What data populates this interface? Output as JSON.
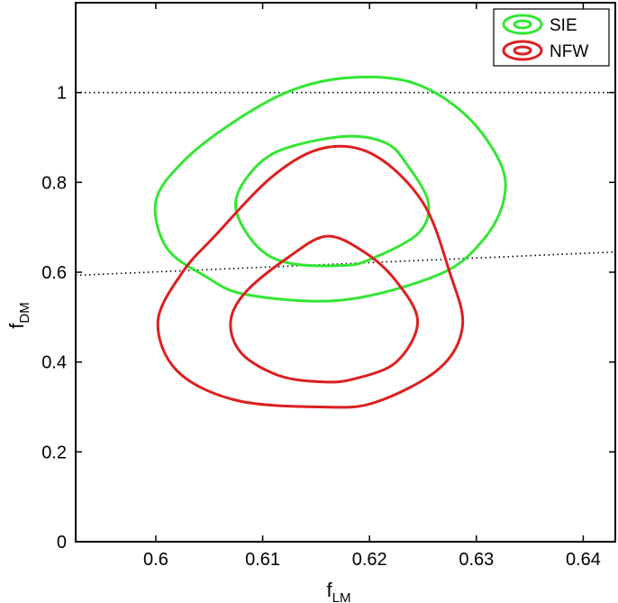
{
  "chart_data": {
    "type": "contour",
    "xlabel": {
      "main": "f",
      "sub": "LM"
    },
    "ylabel": {
      "main": "f",
      "sub": "DM"
    },
    "xlim": [
      0.5925,
      0.643
    ],
    "ylim": [
      0,
      1.2
    ],
    "xticks": [
      0.6,
      0.61,
      0.62,
      0.63,
      0.64
    ],
    "xtick_labels": [
      "0.6",
      "0.61",
      "0.62",
      "0.63",
      "0.64"
    ],
    "yticks": [
      0,
      0.2,
      0.4,
      0.6,
      0.8,
      1.0
    ],
    "ytick_labels": [
      "0",
      "0.2",
      "0.4",
      "0.6",
      "0.8",
      "1"
    ],
    "legend_position": "top-right",
    "reference_lines": [
      {
        "style": "dotted",
        "points": [
          [
            0.5925,
            1.0
          ],
          [
            0.643,
            1.0
          ]
        ]
      },
      {
        "style": "dotted",
        "points": [
          [
            0.5925,
            0.593
          ],
          [
            0.643,
            0.645
          ]
        ]
      }
    ],
    "series": [
      {
        "name": "SIE",
        "color": "#33e633",
        "contours": [
          [
            [
              0.6235,
              0.84
            ],
            [
              0.6255,
              0.755
            ],
            [
              0.6245,
              0.685
            ],
            [
              0.62,
              0.628
            ],
            [
              0.6175,
              0.615
            ],
            [
              0.6125,
              0.62
            ],
            [
              0.6095,
              0.657
            ],
            [
              0.6075,
              0.74
            ],
            [
              0.6085,
              0.81
            ],
            [
              0.6115,
              0.87
            ],
            [
              0.6175,
              0.902
            ],
            [
              0.6215,
              0.888
            ]
          ],
          [
            [
              0.624,
              1.022
            ],
            [
              0.629,
              0.95
            ],
            [
              0.6323,
              0.84
            ],
            [
              0.6325,
              0.755
            ],
            [
              0.6305,
              0.668
            ],
            [
              0.6265,
              0.595
            ],
            [
              0.6175,
              0.538
            ],
            [
              0.6085,
              0.55
            ],
            [
              0.6045,
              0.593
            ],
            [
              0.601,
              0.655
            ],
            [
              0.6,
              0.758
            ],
            [
              0.6025,
              0.845
            ],
            [
              0.607,
              0.93
            ],
            [
              0.6125,
              1.003
            ],
            [
              0.618,
              1.033
            ]
          ]
        ]
      },
      {
        "name": "NFW",
        "color": "#dd1f1f",
        "contours": [
          [
            [
              0.6195,
              0.645
            ],
            [
              0.6225,
              0.58
            ],
            [
              0.6245,
              0.49
            ],
            [
              0.6225,
              0.4
            ],
            [
              0.6185,
              0.362
            ],
            [
              0.6155,
              0.356
            ],
            [
              0.6115,
              0.37
            ],
            [
              0.608,
              0.42
            ],
            [
              0.607,
              0.49
            ],
            [
              0.6085,
              0.558
            ],
            [
              0.6125,
              0.635
            ],
            [
              0.616,
              0.68
            ]
          ],
          [
            [
              0.625,
              0.755
            ],
            [
              0.6275,
              0.6
            ],
            [
              0.6287,
              0.48
            ],
            [
              0.6265,
              0.385
            ],
            [
              0.6205,
              0.31
            ],
            [
              0.6155,
              0.3
            ],
            [
              0.6075,
              0.315
            ],
            [
              0.602,
              0.38
            ],
            [
              0.6002,
              0.49
            ],
            [
              0.6025,
              0.6
            ],
            [
              0.6055,
              0.68
            ],
            [
              0.611,
              0.815
            ],
            [
              0.6158,
              0.877
            ],
            [
              0.6205,
              0.86
            ]
          ]
        ]
      }
    ]
  }
}
